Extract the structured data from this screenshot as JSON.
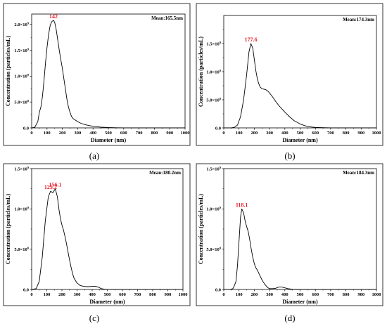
{
  "chart_data": [
    {
      "type": "line",
      "panel_label": "(a)",
      "mean_label": "Mean:165.5nm",
      "xlabel": "Diameter (nm)",
      "ylabel": "Concentration (particles/mL)",
      "xlim": [
        0,
        1000
      ],
      "ylim": [
        0,
        2.2
      ],
      "y_exponent": 9,
      "x_ticks": [
        0,
        100,
        200,
        300,
        400,
        500,
        600,
        700,
        800,
        900,
        1000
      ],
      "y_ticks": [
        {
          "value": 0,
          "label": "0.0"
        },
        {
          "value": 0.5,
          "label": "5.0×10",
          "exp": "8"
        },
        {
          "value": 1.0,
          "label": "1.0×10",
          "exp": "9"
        },
        {
          "value": 1.5,
          "label": "1.5×10",
          "exp": "9"
        },
        {
          "value": 2.0,
          "label": "2.0×10",
          "exp": "9"
        }
      ],
      "annotations": [
        {
          "text": "142",
          "x": 142,
          "y": 2.08
        }
      ],
      "series": [
        {
          "x": [
            0,
            20,
            40,
            50,
            60,
            70,
            80,
            90,
            100,
            110,
            120,
            130,
            142,
            150,
            160,
            170,
            180,
            190,
            200,
            210,
            220,
            230,
            240,
            250,
            260,
            270,
            280,
            300,
            320,
            350,
            400,
            450,
            500,
            550,
            600,
            700,
            800,
            900,
            1000
          ],
          "y": [
            0,
            0.01,
            0.12,
            0.3,
            0.4,
            0.6,
            0.9,
            1.25,
            1.55,
            1.8,
            1.97,
            2.05,
            2.08,
            2.04,
            1.9,
            1.7,
            1.5,
            1.32,
            1.15,
            0.95,
            0.75,
            0.55,
            0.4,
            0.3,
            0.22,
            0.18,
            0.16,
            0.12,
            0.09,
            0.06,
            0.03,
            0.015,
            0.007,
            0.003,
            0.001,
            0,
            0,
            0,
            0
          ]
        }
      ]
    },
    {
      "type": "line",
      "panel_label": "(b)",
      "mean_label": "Mean:174.3nm",
      "xlabel": "Diameter (nm)",
      "ylabel": "Concentration (particles/mL)",
      "xlim": [
        0,
        1000
      ],
      "ylim": [
        0,
        2.0
      ],
      "y_exponent": 9,
      "x_ticks": [
        0,
        100,
        200,
        300,
        400,
        500,
        600,
        700,
        800,
        900,
        1000
      ],
      "y_ticks": [
        {
          "value": 0,
          "label": "0.0"
        },
        {
          "value": 0.5,
          "label": "5.0×10",
          "exp": "8"
        },
        {
          "value": 1.0,
          "label": "1.0×10",
          "exp": "9"
        },
        {
          "value": 1.5,
          "label": "1.5×10",
          "exp": "9"
        }
      ],
      "annotations": [
        {
          "text": "177.6",
          "x": 177.6,
          "y": 1.5
        }
      ],
      "series": [
        {
          "x": [
            0,
            50,
            70,
            90,
            110,
            130,
            150,
            165,
            177.6,
            190,
            200,
            210,
            220,
            230,
            240,
            250,
            260,
            275,
            290,
            300,
            320,
            340,
            360,
            380,
            400,
            430,
            460,
            500,
            530,
            560,
            600,
            650,
            700,
            800,
            900,
            1000
          ],
          "y": [
            0,
            0,
            0.01,
            0.05,
            0.2,
            0.5,
            0.95,
            1.35,
            1.5,
            1.42,
            1.22,
            1.02,
            0.87,
            0.78,
            0.72,
            0.7,
            0.69,
            0.68,
            0.65,
            0.62,
            0.55,
            0.47,
            0.4,
            0.34,
            0.28,
            0.2,
            0.13,
            0.07,
            0.04,
            0.02,
            0.008,
            0.003,
            0,
            0,
            0,
            0
          ]
        }
      ]
    },
    {
      "type": "line",
      "panel_label": "(c)",
      "mean_label": "Mean:180.2nm",
      "xlabel": "Diameter (nm)",
      "ylabel": "Concentration (particles/mL)",
      "xlim": [
        0,
        1000
      ],
      "ylim": [
        0,
        1.5
      ],
      "y_exponent": 9,
      "x_ticks": [
        0,
        100,
        200,
        300,
        400,
        500,
        600,
        700,
        800,
        900,
        1000
      ],
      "y_ticks": [
        {
          "value": 0,
          "label": "0.0"
        },
        {
          "value": 0.5,
          "label": "5.0×10",
          "exp": "8"
        },
        {
          "value": 1.0,
          "label": "1.0×10",
          "exp": "9"
        },
        {
          "value": 1.5,
          "label": "1.5×10",
          "exp": "9"
        }
      ],
      "annotations": [
        {
          "text": "125.2",
          "x": 125.2,
          "y": 1.22
        },
        {
          "text": "156.1",
          "x": 156.1,
          "y": 1.25
        }
      ],
      "series": [
        {
          "x": [
            0,
            30,
            50,
            70,
            90,
            110,
            125.2,
            140,
            156.1,
            170,
            180,
            190,
            200,
            210,
            220,
            230,
            240,
            250,
            260,
            270,
            280,
            300,
            320,
            340,
            360,
            380,
            400,
            420,
            440,
            460,
            480,
            500,
            550,
            600,
            1000
          ],
          "y": [
            0,
            0.01,
            0.1,
            0.4,
            0.85,
            1.15,
            1.22,
            1.2,
            1.25,
            1.15,
            1.0,
            0.88,
            0.8,
            0.74,
            0.66,
            0.57,
            0.47,
            0.37,
            0.28,
            0.2,
            0.14,
            0.08,
            0.05,
            0.04,
            0.035,
            0.035,
            0.04,
            0.04,
            0.03,
            0.01,
            0.004,
            0.001,
            0,
            0,
            0
          ]
        }
      ]
    },
    {
      "type": "line",
      "panel_label": "(d)",
      "mean_label": "Mean:184.3nm",
      "xlabel": "Diameter (nm)",
      "ylabel": "Concentration (particles/mL)",
      "xlim": [
        0,
        1000
      ],
      "ylim": [
        0,
        1.5
      ],
      "y_exponent": 9,
      "x_ticks": [
        0,
        100,
        200,
        300,
        400,
        500,
        600,
        700,
        800,
        900,
        1000
      ],
      "y_ticks": [
        {
          "value": 0,
          "label": "0.0"
        },
        {
          "value": 0.5,
          "label": "5.0×10",
          "exp": "8"
        },
        {
          "value": 1.0,
          "label": "1.0×10",
          "exp": "9"
        },
        {
          "value": 1.5,
          "label": "1.5×10",
          "exp": "9"
        }
      ],
      "annotations": [
        {
          "text": "118.1",
          "x": 118.1,
          "y": 1.0
        }
      ],
      "series": [
        {
          "x": [
            0,
            40,
            60,
            70,
            80,
            90,
            100,
            110,
            118.1,
            130,
            140,
            150,
            160,
            170,
            180,
            190,
            200,
            210,
            220,
            230,
            240,
            250,
            260,
            270,
            280,
            290,
            300,
            320,
            340,
            360,
            380,
            400,
            420,
            450,
            500,
            1000
          ],
          "y": [
            0,
            0,
            0.01,
            0.05,
            0.1,
            0.3,
            0.6,
            0.9,
            1.0,
            0.95,
            0.85,
            0.78,
            0.72,
            0.62,
            0.5,
            0.4,
            0.32,
            0.27,
            0.24,
            0.2,
            0.16,
            0.12,
            0.09,
            0.06,
            0.04,
            0.02,
            0.01,
            0.01,
            0.015,
            0.03,
            0.03,
            0.02,
            0.01,
            0.003,
            0,
            0
          ]
        }
      ]
    }
  ]
}
